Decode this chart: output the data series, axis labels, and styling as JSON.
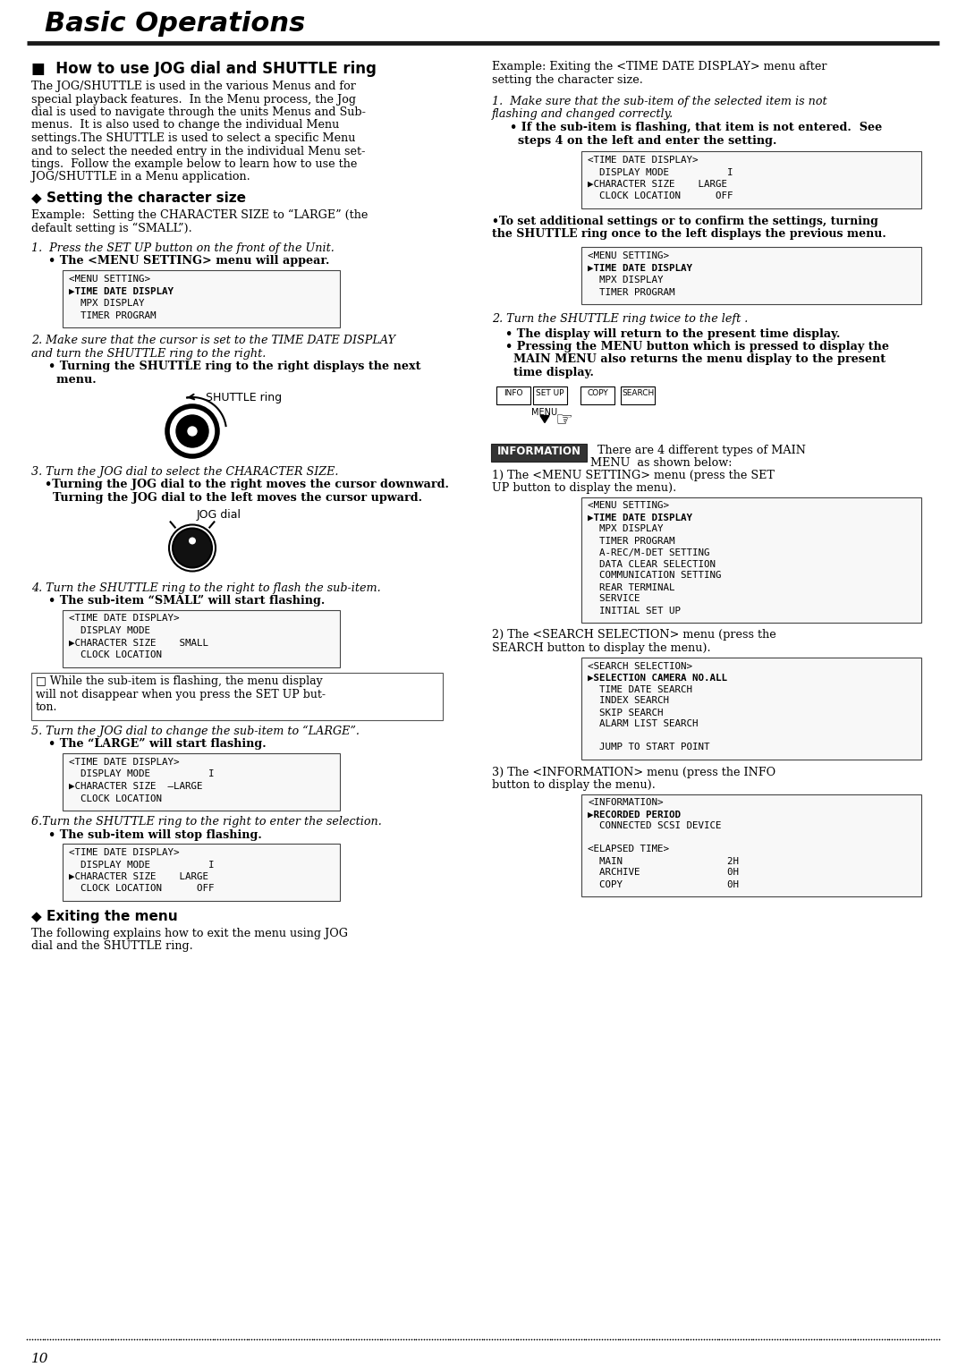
{
  "title": "Basic Operations",
  "page_number": "10",
  "bg_color": "#ffffff",
  "text_color": "#000000",
  "section1_head": "■  How to use JOG dial and SHUTTLE ring",
  "section1_body_lines": [
    "The JOG/SHUTTLE is used in the various Menus and for",
    "special playback features.  In the Menu process, the Jog",
    "dial is used to navigate through the units Menus and Sub-",
    "menus.  It is also used to change the individual Menu",
    "settings.The SHUTTLE is used to select a specific Menu",
    "and to select the needed entry in the individual Menu set-",
    "tings.  Follow the example below to learn how to use the",
    "JOG/SHUTTLE in a Menu application."
  ],
  "section2_head": "◆ Setting the character size",
  "section2_body_lines": [
    "Example:  Setting the CHARACTER SIZE to “LARGE” (the",
    "default setting is “SMALL”)."
  ],
  "step1_italic": "1.  Press the SET UP button on the front of the Unit.",
  "step1_bold": "• The <MENU SETTING> menu will appear.",
  "menu_box1_lines": [
    "<MENU SETTING>",
    "▶TIME DATE DISPLAY",
    "  MPX DISPLAY",
    "  TIMER PROGRAM"
  ],
  "menu_box1_bold": [
    false,
    true,
    false,
    false
  ],
  "step2_italic_lines": [
    "2. Make sure that the cursor is set to the TIME DATE DISPLAY",
    "and turn the SHUTTLE ring to the right."
  ],
  "step2_bold_lines": [
    "• Turning the SHUTTLE ring to the right displays the next",
    "  menu."
  ],
  "shuttle_ring_label": "SHUTTLE ring",
  "step3_italic": "3. Turn the JOG dial to select the CHARACTER SIZE.",
  "step3_bold_lines": [
    "•Turning the JOG dial to the right moves the cursor downward.",
    "  Turning the JOG dial to the left moves the cursor upward."
  ],
  "jog_dial_label": "JOG dial",
  "step4_italic": "4. Turn the SHUTTLE ring to the right to flash the sub-item.",
  "step4_bold": "• The sub-item “SMALL” will start flashing.",
  "menu_box2_lines": [
    "<TIME DATE DISPLAY>",
    "  DISPLAY MODE",
    "▶CHARACTER SIZE    SMALL",
    "  CLOCK LOCATION"
  ],
  "menu_box2_bold": [
    false,
    false,
    false,
    false
  ],
  "note1_lines": [
    "□ While the sub-item is flashing, the menu display",
    "will not disappear when you press the SET UP but-",
    "ton."
  ],
  "step5_italic_lines": [
    "5. Turn the JOG dial to change the sub-item to “LARGE”."
  ],
  "step5_bold": "• The “LARGE” will start flashing.",
  "menu_box3_lines": [
    "<TIME DATE DISPLAY>",
    "  DISPLAY MODE          I",
    "▶CHARACTER SIZE  —LARGE",
    "  CLOCK LOCATION"
  ],
  "menu_box3_bold": [
    false,
    false,
    false,
    false
  ],
  "step6_italic": "6.Turn the SHUTTLE ring to the right to enter the selection.",
  "step6_bold": "• The sub-item will stop flashing.",
  "menu_box4_lines": [
    "<TIME DATE DISPLAY>",
    "  DISPLAY MODE          I",
    "▶CHARACTER SIZE    LARGE",
    "  CLOCK LOCATION      OFF"
  ],
  "menu_box4_bold": [
    false,
    false,
    false,
    false
  ],
  "exiting_head": "◆ Exiting the menu",
  "exiting_body_lines": [
    "The following explains how to exit the menu using JOG",
    "dial and the SHUTTLE ring."
  ],
  "right_col_intro_lines": [
    "Example: Exiting the <TIME DATE DISPLAY> menu after",
    "setting the character size."
  ],
  "step_right1_italic_lines": [
    "1.  Make sure that the sub-item of the selected item is not",
    "flashing and changed correctly."
  ],
  "step_right1_bold_lines": [
    "• If the sub-item is flashing, that item is not entered.  See",
    "  steps 4 on the left and enter the setting."
  ],
  "menu_box_r1_lines": [
    "<TIME DATE DISPLAY>",
    "  DISPLAY MODE          I",
    "▶CHARACTER SIZE    LARGE",
    "  CLOCK LOCATION      OFF"
  ],
  "menu_box_r1_bold": [
    false,
    false,
    false,
    false
  ],
  "note_right1_lines": [
    "•To set additional settings or to confirm the settings, turning",
    "the SHUTTLE ring once to the left displays the previous menu."
  ],
  "menu_box_r2_lines": [
    "<MENU SETTING>",
    "▶TIME DATE DISPLAY",
    "  MPX DISPLAY",
    "  TIMER PROGRAM"
  ],
  "menu_box_r2_bold": [
    false,
    true,
    false,
    false
  ],
  "step_right2_italic": "2. Turn the SHUTTLE ring twice to the left .",
  "step_right2_bold_lines": [
    "• The display will return to the present time display.",
    "• Pressing the MENU button which is pressed to display the",
    "  MAIN MENU also returns the menu display to the present",
    "  time display."
  ],
  "info_label": "INFORMATION",
  "info_text_lines": [
    "  There are 4 different types of MAIN",
    "MENU  as shown below:"
  ],
  "menu1_label_lines": [
    "1) The <MENU SETTING> menu (press the SET",
    "UP button to display the menu)."
  ],
  "menu_box_info1_lines": [
    "<MENU SETTING>",
    "▶TIME DATE DISPLAY",
    "  MPX DISPLAY",
    "  TIMER PROGRAM",
    "  A-REC/M-DET SETTING",
    "  DATA CLEAR SELECTION",
    "  COMMUNICATION SETTING",
    "  REAR TERMINAL",
    "  SERVICE",
    "  INITIAL SET UP"
  ],
  "menu_box_info1_bold": [
    false,
    true,
    false,
    false,
    false,
    false,
    false,
    false,
    false,
    false
  ],
  "menu2_label_lines": [
    "2) The <SEARCH SELECTION> menu (press the",
    "SEARCH button to display the menu)."
  ],
  "menu_box_info2_lines": [
    "<SEARCH SELECTION>",
    "▶SELECTION CAMERA NO.ALL",
    "  TIME DATE SEARCH",
    "  INDEX SEARCH",
    "  SKIP SEARCH",
    "  ALARM LIST SEARCH",
    "",
    "  JUMP TO START POINT"
  ],
  "menu_box_info2_bold": [
    false,
    true,
    false,
    false,
    false,
    false,
    false,
    false
  ],
  "menu3_label_lines": [
    "3) The <INFORMATION> menu (press the INFO",
    "button to display the menu)."
  ],
  "menu_box_info3_lines": [
    "<INFORMATION>",
    "▶RECORDED PERIOD",
    "  CONNECTED SCSI DEVICE",
    "",
    "<ELAPSED TIME>",
    "  MAIN                  2H",
    "  ARCHIVE               0H",
    "  COPY                  0H"
  ],
  "menu_box_info3_bold": [
    false,
    true,
    false,
    false,
    false,
    false,
    false,
    false
  ]
}
